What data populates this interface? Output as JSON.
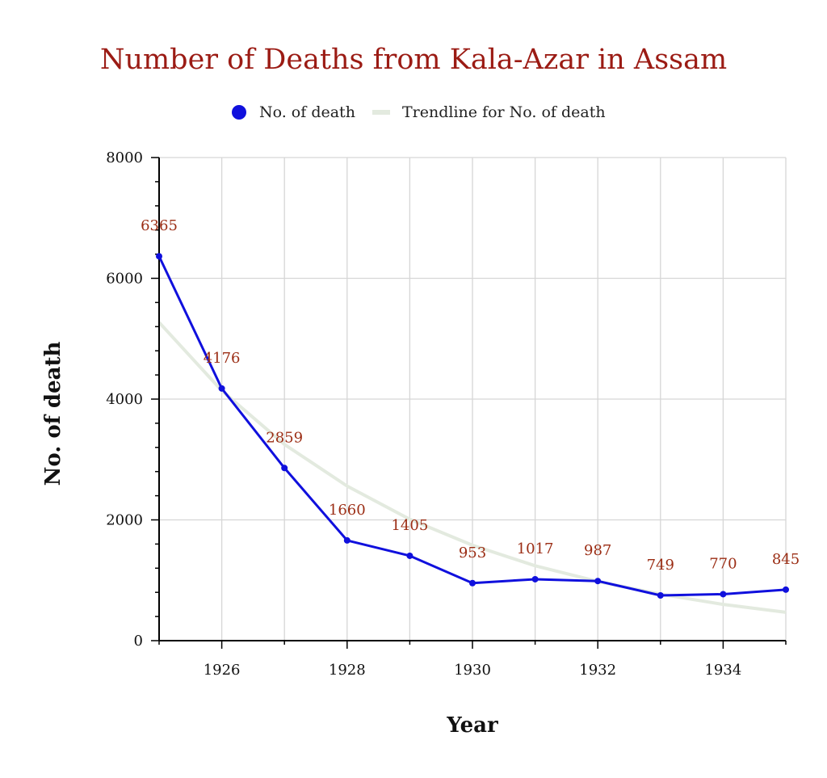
{
  "chart_data": {
    "type": "line",
    "title": "Number of Deaths from Kala-Azar in Assam",
    "xlabel": "Year",
    "ylabel": "No. of death",
    "x": [
      1925,
      1926,
      1927,
      1928,
      1929,
      1930,
      1931,
      1932,
      1933,
      1934,
      1935
    ],
    "xlim": [
      1925,
      1935
    ],
    "ylim": [
      0,
      8000
    ],
    "x_ticks": [
      1926,
      1928,
      1930,
      1932,
      1934
    ],
    "x_tick_labels": [
      "1926",
      "1928",
      "1930",
      "1932",
      "1934"
    ],
    "y_ticks": [
      0,
      2000,
      4000,
      6000,
      8000
    ],
    "y_tick_labels": [
      "0",
      "2000",
      "4000",
      "6000",
      "8000"
    ],
    "grid": true,
    "legend_position": "top-center",
    "series": [
      {
        "name": "No. of death",
        "color": "#1010dd",
        "values": [
          6365,
          4176,
          2859,
          1660,
          1405,
          953,
          1017,
          987,
          749,
          770,
          845
        ],
        "data_labels": [
          "6365",
          "4176",
          "2859",
          "1660",
          "1405",
          "953",
          "1017",
          "987",
          "749",
          "770",
          "845"
        ]
      },
      {
        "name": "Trendline for No. of death",
        "color": "#e3eadf",
        "kind": "exponential trendline",
        "values": [
          5270,
          4140,
          3250,
          2560,
          2010,
          1580,
          1240,
          980,
          770,
          600,
          470
        ]
      }
    ]
  }
}
